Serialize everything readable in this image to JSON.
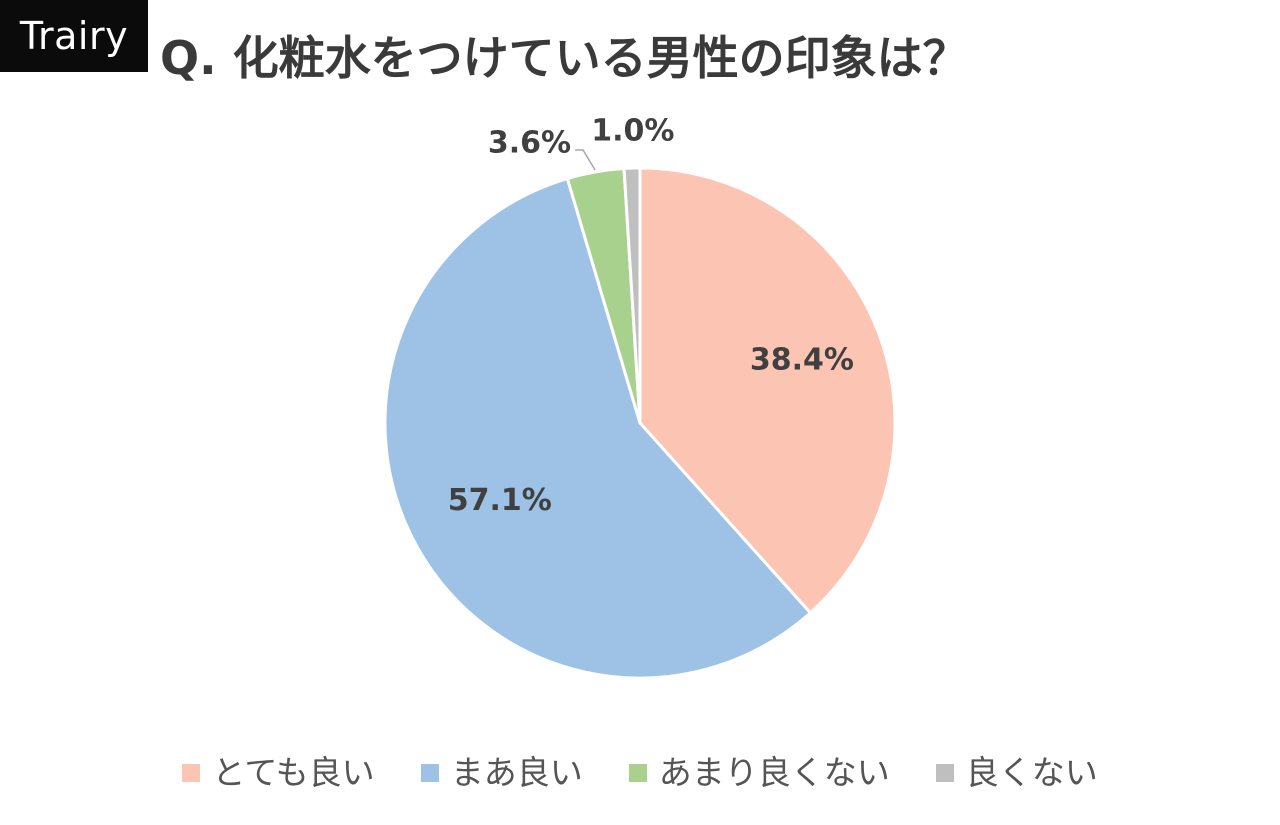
{
  "brand": {
    "logo_text": "Trairy",
    "logo_bg": "#0b0b0b",
    "logo_fg": "#ffffff"
  },
  "chart_data": {
    "type": "pie",
    "title": "Q. 化粧水をつけている男性の印象は？",
    "legend_position": "bottom",
    "slices": [
      {
        "label": "とても良い",
        "value": 38.4,
        "value_label": "38.4%",
        "color": "#fcc4b3"
      },
      {
        "label": "まあ良い",
        "value": 57.1,
        "value_label": "57.1%",
        "color": "#9dc2e6"
      },
      {
        "label": "あまり良くない",
        "value": 3.6,
        "value_label": "3.6%",
        "color": "#a9d18e"
      },
      {
        "label": "良くない",
        "value": 1.0,
        "value_label": "1.0%",
        "color": "#bfbfbf"
      }
    ]
  },
  "colors": {
    "title_text": "#3a3a3a",
    "data_label_text": "#404040",
    "legend_text": "#555555",
    "leader_line": "#a6a6a6"
  }
}
